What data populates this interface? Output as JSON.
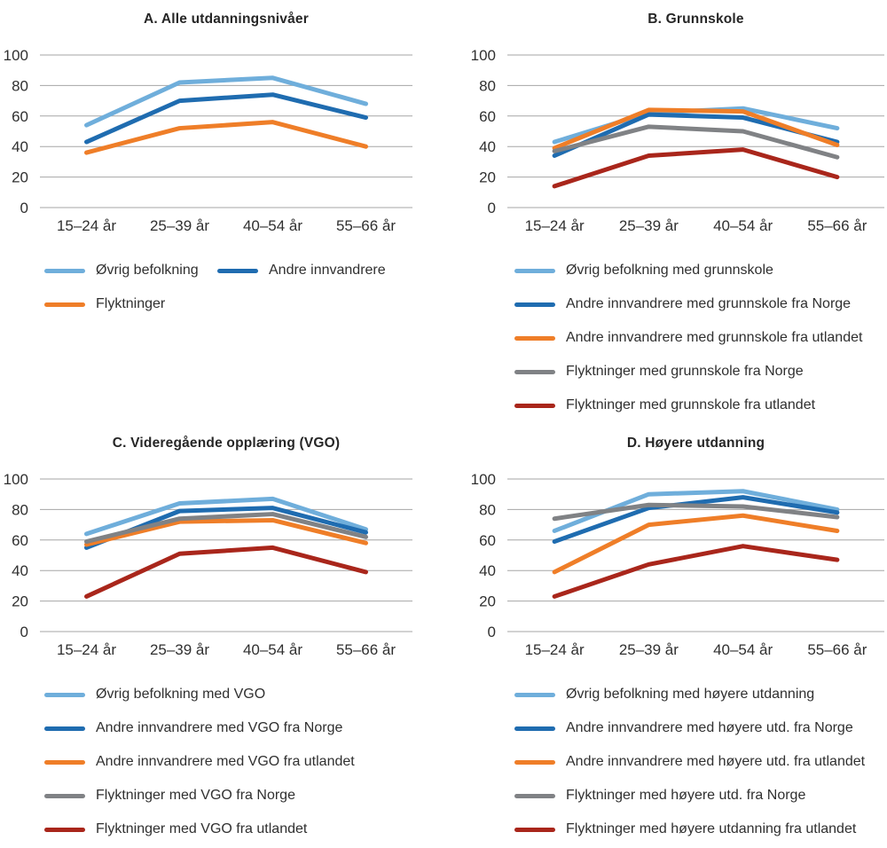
{
  "page": {
    "background": "#FFFFFF"
  },
  "colors": {
    "light_blue": "#6FAEDB",
    "dark_blue": "#1F6CB0",
    "orange": "#EF7E28",
    "gray": "#808285",
    "dark_red": "#A9261B",
    "gridline": "#A6A6A6",
    "text": "#303030",
    "title": "#262626"
  },
  "chart_data": [
    {
      "id": "A",
      "type": "line",
      "title": "A. Alle utdanningsnivåer",
      "categories": [
        "15–24 år",
        "25–39 år",
        "40–54 år",
        "55–66 år"
      ],
      "ylim": [
        0,
        100
      ],
      "yticks": [
        0,
        20,
        40,
        60,
        80,
        100
      ],
      "grid": true,
      "legend_position": "bottom",
      "legend_columns": 2,
      "series": [
        {
          "name": "Øvrig befolkning",
          "color_key": "light_blue",
          "values": [
            54,
            82,
            85,
            68
          ]
        },
        {
          "name": "Andre innvandrere",
          "color_key": "dark_blue",
          "values": [
            43,
            70,
            74,
            59
          ]
        },
        {
          "name": "Flyktninger",
          "color_key": "orange",
          "values": [
            36,
            52,
            56,
            40
          ]
        }
      ]
    },
    {
      "id": "B",
      "type": "line",
      "title": "B. Grunnskole",
      "categories": [
        "15–24 år",
        "25–39 år",
        "40–54 år",
        "55–66 år"
      ],
      "ylim": [
        0,
        100
      ],
      "yticks": [
        0,
        20,
        40,
        60,
        80,
        100
      ],
      "grid": true,
      "legend_position": "bottom",
      "legend_columns": 1,
      "series": [
        {
          "name": "Øvrig befolkning med grunnskole",
          "color_key": "light_blue",
          "values": [
            43,
            62,
            65,
            52
          ]
        },
        {
          "name": "Andre innvandrere med grunnskole fra Norge",
          "color_key": "dark_blue",
          "values": [
            34,
            61,
            59,
            43
          ]
        },
        {
          "name": "Andre innvandrere med grunnskole fra utlandet",
          "color_key": "orange",
          "values": [
            39,
            64,
            63,
            41
          ]
        },
        {
          "name": "Flyktninger med grunnskole fra Norge",
          "color_key": "gray",
          "values": [
            37,
            53,
            50,
            33
          ]
        },
        {
          "name": "Flyktninger med grunnskole fra utlandet",
          "color_key": "dark_red",
          "values": [
            14,
            34,
            38,
            20
          ]
        }
      ]
    },
    {
      "id": "C",
      "type": "line",
      "title": "C. Videregående opplæring (VGO)",
      "categories": [
        "15–24 år",
        "25–39 år",
        "40–54 år",
        "55–66 år"
      ],
      "ylim": [
        0,
        100
      ],
      "yticks": [
        0,
        20,
        40,
        60,
        80,
        100
      ],
      "grid": true,
      "legend_position": "bottom",
      "legend_columns": 1,
      "series": [
        {
          "name": "Øvrig befolkning med VGO",
          "color_key": "light_blue",
          "values": [
            64,
            84,
            87,
            67
          ]
        },
        {
          "name": "Andre innvandrere med VGO fra Norge",
          "color_key": "dark_blue",
          "values": [
            55,
            79,
            81,
            65
          ]
        },
        {
          "name": "Andre innvandrere med VGO fra utlandet",
          "color_key": "orange",
          "values": [
            57,
            72,
            73,
            58
          ]
        },
        {
          "name": "Flyktninger med VGO fra Norge",
          "color_key": "gray",
          "values": [
            59,
            74,
            77,
            62
          ]
        },
        {
          "name": "Flyktninger med VGO fra utlandet",
          "color_key": "dark_red",
          "values": [
            23,
            51,
            55,
            39
          ]
        }
      ]
    },
    {
      "id": "D",
      "type": "line",
      "title": "D. Høyere utdanning",
      "categories": [
        "15–24 år",
        "25–39 år",
        "40–54 år",
        "55–66 år"
      ],
      "ylim": [
        0,
        100
      ],
      "yticks": [
        0,
        20,
        40,
        60,
        80,
        100
      ],
      "grid": true,
      "legend_position": "bottom",
      "legend_columns": 1,
      "series": [
        {
          "name": "Øvrig befolkning med høyere utdanning",
          "color_key": "light_blue",
          "values": [
            66,
            90,
            92,
            80
          ]
        },
        {
          "name": "Andre innvandrere med høyere utd. fra Norge",
          "color_key": "dark_blue",
          "values": [
            59,
            81,
            88,
            78
          ]
        },
        {
          "name": "Andre innvandrere med høyere utd. fra utlandet",
          "color_key": "orange",
          "values": [
            39,
            70,
            76,
            66
          ]
        },
        {
          "name": "Flyktninger med høyere utd. fra Norge",
          "color_key": "gray",
          "values": [
            74,
            83,
            82,
            75
          ]
        },
        {
          "name": "Flyktninger med høyere utdanning fra utlandet",
          "color_key": "dark_red",
          "values": [
            23,
            44,
            56,
            47
          ]
        }
      ]
    }
  ]
}
